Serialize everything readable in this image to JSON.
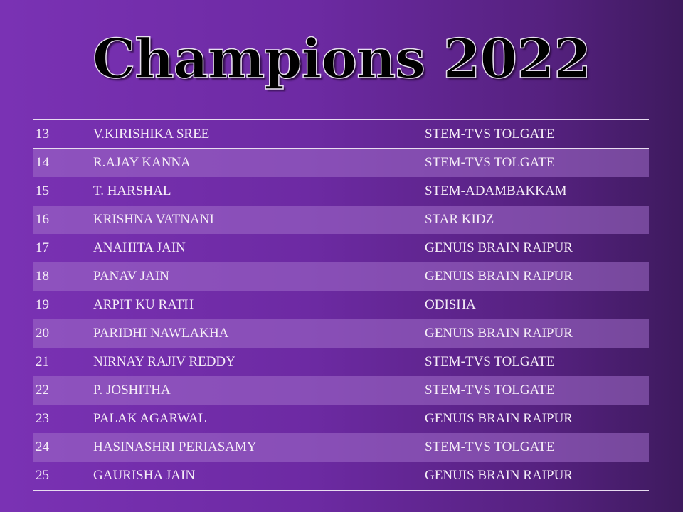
{
  "title": "Champions 2022",
  "rows": [
    {
      "no": "13",
      "name": "V.KIRISHIKA SREE",
      "school": "STEM-TVS TOLGATE"
    },
    {
      "no": "14",
      "name": "R.AJAY KANNA",
      "school": "STEM-TVS TOLGATE"
    },
    {
      "no": "15",
      "name": "T. HARSHAL",
      "school": "STEM-ADAMBAKKAM"
    },
    {
      "no": "16",
      "name": "KRISHNA VATNANI",
      "school": "STAR KIDZ"
    },
    {
      "no": "17",
      "name": "ANAHITA JAIN",
      "school": "GENUIS BRAIN RAIPUR"
    },
    {
      "no": "18",
      "name": "PANAV JAIN",
      "school": "GENUIS BRAIN RAIPUR"
    },
    {
      "no": "19",
      "name": "ARPIT KU RATH",
      "school": "ODISHA"
    },
    {
      "no": "20",
      "name": "PARIDHI NAWLAKHA",
      "school": "GENUIS BRAIN RAIPUR"
    },
    {
      "no": "21",
      "name": "NIRNAY RAJIV REDDY",
      "school": "STEM-TVS TOLGATE"
    },
    {
      "no": "22",
      "name": "P. JOSHITHA",
      "school": "STEM-TVS TOLGATE"
    },
    {
      "no": "23",
      "name": "PALAK AGARWAL",
      "school": "GENUIS BRAIN RAIPUR"
    },
    {
      "no": "24",
      "name": "HASINASHRI PERIASAMY",
      "school": "STEM-TVS TOLGATE"
    },
    {
      "no": "25",
      "name": "GAURISHA JAIN",
      "school": "GENUIS BRAIN RAIPUR"
    }
  ]
}
